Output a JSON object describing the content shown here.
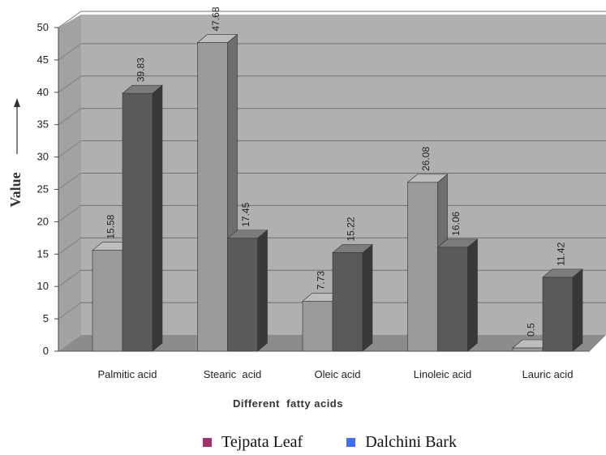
{
  "chart_data": {
    "type": "bar",
    "xlabel": "Different  fatty acids",
    "ylabel": "Value",
    "ylim": [
      0,
      50
    ],
    "yticks": [
      0,
      5,
      10,
      15,
      20,
      25,
      30,
      35,
      40,
      45,
      50
    ],
    "categories": [
      "Palmitic acid",
      "Stearic  acid",
      "Oleic acid",
      "Linoleic acid",
      "Lauric acid"
    ],
    "series": [
      {
        "name": "Tejpata Leaf",
        "values": [
          15.58,
          47.68,
          7.73,
          26.08,
          0.5
        ],
        "labels": [
          "15.58",
          "47.68",
          "7.73",
          "26.08",
          "0.5"
        ]
      },
      {
        "name": "Dalchini Bark",
        "values": [
          39.83,
          17.45,
          15.22,
          16.06,
          11.42
        ],
        "labels": [
          "39.83",
          "17.45",
          "15.22",
          "16.06",
          "11.42"
        ]
      }
    ],
    "grid": true,
    "legend_position": "bottom",
    "colors": {
      "series1_front": "#9a9a9a",
      "series1_side": "#6e6e6e",
      "series1_top": "#bdbdbd",
      "series2_front": "#5a5a5a",
      "series2_side": "#383838",
      "series2_top": "#7c7c7c",
      "wall": "#b0b0b0",
      "floor": "#8c8c8c",
      "legend_series1": "#a0336a",
      "legend_series2": "#3f6fff"
    }
  }
}
